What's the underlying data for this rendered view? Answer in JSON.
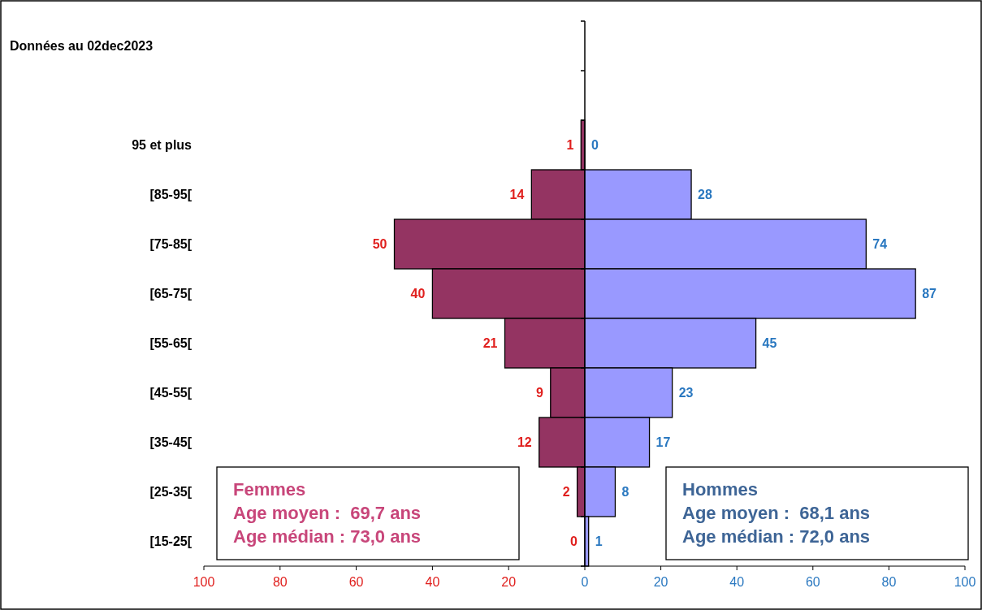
{
  "chart_data": [
    {
      "type": "bar",
      "orientation": "horizontal",
      "title": "Données au 02dec2023",
      "categories": [
        null,
        null,
        "95 et plus",
        "[85-95[",
        "[75-85[",
        "[65-75[",
        "[55-65[",
        "[45-55[",
        "[35-45[",
        "[25-35[",
        "[15-25["
      ],
      "series": [
        {
          "color": "#943462",
          "values": [
            null,
            null,
            1,
            14,
            50,
            40,
            21,
            9,
            12,
            2,
            0
          ],
          "value_labels": [
            null,
            null,
            "1",
            "14",
            "50",
            "40",
            "21",
            "9",
            "12",
            "2",
            "0"
          ]
        }
      ],
      "xlim": [
        100,
        0
      ],
      "xticks": [
        100,
        80,
        60,
        40,
        20
      ],
      "annotations": [
        "Femmes\nAge moyen :  69,7 ans\nAge médian : 73,0 ans"
      ]
    },
    {
      "type": "bar",
      "orientation": "horizontal",
      "tick_labels": "x",
      "series": [
        {
          "color": "#9999ff",
          "values": [
            null,
            null,
            0,
            28,
            74,
            87,
            45,
            23,
            17,
            8,
            1
          ],
          "value_labels": [
            null,
            null,
            "0",
            "28",
            "74",
            "87",
            "45",
            "23",
            "17",
            "8",
            "1"
          ]
        }
      ],
      "xlim": [
        0,
        100
      ],
      "xticks": [
        0,
        20,
        40,
        60,
        80,
        100
      ],
      "annotations": [
        "Hommes\nAge moyen :  68,1 ans\nAge médian : 72,0 ans"
      ]
    }
  ]
}
